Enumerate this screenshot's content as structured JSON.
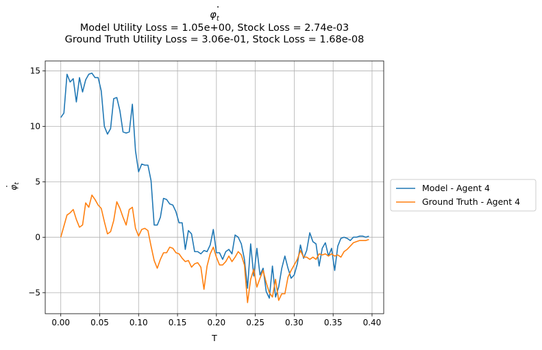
{
  "chart_data": {
    "type": "line",
    "title": {
      "symbol": "φ",
      "subscript": "t",
      "line2": "Model Utility Loss = 1.05e+00, Stock Loss = 2.74e-03",
      "line3": "Ground Truth Utility Loss = 3.06e-01, Stock Loss = 1.68e-08"
    },
    "xlabel": "T",
    "ylabel": {
      "symbol": "φ",
      "subscript": "t"
    },
    "xlim": [
      -0.02,
      0.415
    ],
    "ylim": [
      -6.9,
      15.9
    ],
    "xticks": [
      0.0,
      0.05,
      0.1,
      0.15,
      0.2,
      0.25,
      0.3,
      0.35,
      0.4
    ],
    "xtick_labels": [
      "0.00",
      "0.05",
      "0.10",
      "0.15",
      "0.20",
      "0.25",
      "0.30",
      "0.35",
      "0.40"
    ],
    "yticks": [
      -5,
      0,
      5,
      10,
      15
    ],
    "ytick_labels": [
      "−5",
      "0",
      "5",
      "10",
      "15"
    ],
    "grid": true,
    "legend": "outside-right",
    "x": [
      0.0,
      0.004,
      0.008,
      0.012,
      0.016,
      0.02,
      0.024,
      0.028,
      0.032,
      0.036,
      0.04,
      0.044,
      0.048,
      0.052,
      0.056,
      0.06,
      0.064,
      0.068,
      0.072,
      0.076,
      0.08,
      0.084,
      0.088,
      0.092,
      0.096,
      0.1,
      0.104,
      0.108,
      0.112,
      0.116,
      0.12,
      0.124,
      0.128,
      0.132,
      0.136,
      0.14,
      0.144,
      0.148,
      0.152,
      0.156,
      0.16,
      0.164,
      0.168,
      0.172,
      0.176,
      0.18,
      0.184,
      0.188,
      0.192,
      0.196,
      0.2,
      0.204,
      0.208,
      0.212,
      0.216,
      0.22,
      0.224,
      0.228,
      0.232,
      0.236,
      0.24,
      0.244,
      0.248,
      0.252,
      0.256,
      0.26,
      0.264,
      0.268,
      0.272,
      0.276,
      0.28,
      0.284,
      0.288,
      0.292,
      0.296,
      0.3,
      0.304,
      0.308,
      0.312,
      0.316,
      0.32,
      0.324,
      0.328,
      0.332,
      0.336,
      0.34,
      0.344,
      0.348,
      0.352,
      0.356,
      0.36,
      0.364,
      0.368,
      0.372,
      0.376,
      0.38,
      0.384,
      0.388,
      0.392,
      0.396
    ],
    "series": [
      {
        "name": "Model - Agent 4",
        "color": "#1f77b4",
        "values": [
          10.8,
          11.2,
          14.7,
          14.0,
          14.3,
          12.2,
          14.4,
          13.1,
          14.2,
          14.7,
          14.8,
          14.4,
          14.4,
          13.2,
          10.0,
          9.3,
          9.8,
          12.5,
          12.6,
          11.4,
          9.5,
          9.4,
          9.5,
          12.0,
          7.8,
          5.9,
          6.6,
          6.5,
          6.5,
          5.1,
          1.1,
          1.1,
          1.8,
          3.5,
          3.4,
          3.0,
          2.9,
          2.3,
          1.3,
          1.3,
          -1.1,
          0.6,
          0.3,
          -1.3,
          -1.3,
          -1.5,
          -1.2,
          -1.3,
          -0.7,
          0.7,
          -1.4,
          -1.4,
          -2.0,
          -1.3,
          -1.1,
          -1.5,
          0.2,
          0.0,
          -0.6,
          -2.0,
          -4.6,
          -0.6,
          -3.5,
          -1.0,
          -3.4,
          -2.8,
          -4.9,
          -5.5,
          -2.6,
          -5.4,
          -4.5,
          -2.8,
          -1.7,
          -2.8,
          -3.7,
          -3.4,
          -2.4,
          -0.7,
          -1.9,
          -1.2,
          0.4,
          -0.4,
          -0.6,
          -2.6,
          -1.0,
          -0.5,
          -1.7,
          -1.0,
          -3.0,
          -0.8,
          -0.1,
          0.0,
          -0.1,
          -0.3,
          0.0,
          0.0,
          0.1,
          0.1,
          0.0,
          0.1
        ]
      },
      {
        "name": "Ground Truth - Agent 4",
        "color": "#ff7f0e",
        "values": [
          0.0,
          1.0,
          2.0,
          2.2,
          2.5,
          1.6,
          0.9,
          1.1,
          3.1,
          2.7,
          3.8,
          3.4,
          2.9,
          2.6,
          1.4,
          0.3,
          0.5,
          1.5,
          3.2,
          2.6,
          1.8,
          1.1,
          2.5,
          2.7,
          0.8,
          0.1,
          0.7,
          0.8,
          0.6,
          -0.8,
          -2.1,
          -2.8,
          -2.0,
          -1.4,
          -1.4,
          -0.9,
          -1.0,
          -1.4,
          -1.5,
          -1.9,
          -2.2,
          -2.1,
          -2.7,
          -2.4,
          -2.3,
          -2.7,
          -4.7,
          -2.6,
          -1.5,
          -0.9,
          -1.8,
          -2.5,
          -2.5,
          -2.2,
          -1.7,
          -2.2,
          -1.8,
          -1.3,
          -1.6,
          -2.5,
          -5.9,
          -3.8,
          -2.9,
          -4.5,
          -3.7,
          -3.0,
          -4.1,
          -5.0,
          -5.4,
          -3.8,
          -5.7,
          -5.1,
          -5.1,
          -3.6,
          -3.0,
          -2.5,
          -2.0,
          -1.2,
          -1.8,
          -1.8,
          -2.0,
          -1.8,
          -2.0,
          -1.5,
          -1.6,
          -1.5,
          -1.7,
          -1.5,
          -1.7,
          -1.6,
          -1.8,
          -1.3,
          -1.1,
          -0.8,
          -0.5,
          -0.4,
          -0.3,
          -0.3,
          -0.3,
          -0.2
        ]
      }
    ]
  }
}
